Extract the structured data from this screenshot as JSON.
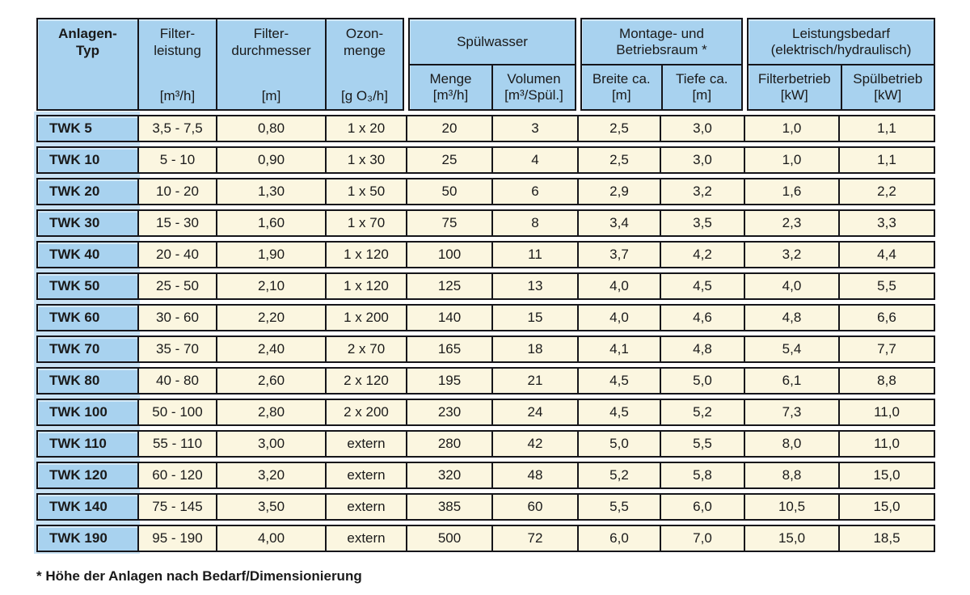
{
  "header": {
    "columns": [
      {
        "title": "Anlagen-\nTyp",
        "unit": ""
      },
      {
        "title": "Filter-\nleistung",
        "unit": "[m³/h]"
      },
      {
        "title": "Filter-\ndurchmesser",
        "unit": "[m]"
      },
      {
        "title": "Ozon-\nmenge",
        "unit": "[g O₃/h]"
      }
    ],
    "groups": [
      {
        "label": "Spülwasser",
        "sub": [
          {
            "name": "Menge",
            "unit": "[m³/h]"
          },
          {
            "name": "Volumen",
            "unit": "[m³/Spül.]"
          }
        ]
      },
      {
        "label": "Montage- und\nBetriebsraum *",
        "sub": [
          {
            "name": "Breite ca.",
            "unit": "[m]"
          },
          {
            "name": "Tiefe ca.",
            "unit": "[m]"
          }
        ]
      },
      {
        "label": "Leistungsbedarf\n(elektrisch/hydraulisch)",
        "sub": [
          {
            "name": "Filterbetrieb",
            "unit": "[kW]"
          },
          {
            "name": "Spülbetrieb",
            "unit": "[kW]"
          }
        ]
      }
    ]
  },
  "body": {
    "rows": [
      {
        "cells": [
          "TWK 5",
          "3,5 - 7,5",
          "0,80",
          "1 x 20",
          "20",
          "3",
          "2,5",
          "3,0",
          "1,0",
          "1,1"
        ]
      },
      {
        "cells": [
          "TWK 10",
          "5 - 10",
          "0,90",
          "1 x 30",
          "25",
          "4",
          "2,5",
          "3,0",
          "1,0",
          "1,1"
        ]
      },
      {
        "cells": [
          "TWK 20",
          "10 - 20",
          "1,30",
          "1 x 50",
          "50",
          "6",
          "2,9",
          "3,2",
          "1,6",
          "2,2"
        ]
      },
      {
        "cells": [
          "TWK 30",
          "15 - 30",
          "1,60",
          "1 x 70",
          "75",
          "8",
          "3,4",
          "3,5",
          "2,3",
          "3,3"
        ]
      },
      {
        "cells": [
          "TWK 40",
          "20 - 40",
          "1,90",
          "1 x 120",
          "100",
          "11",
          "3,7",
          "4,2",
          "3,2",
          "4,4"
        ]
      },
      {
        "cells": [
          "TWK 50",
          "25 - 50",
          "2,10",
          "1 x 120",
          "125",
          "13",
          "4,0",
          "4,5",
          "4,0",
          "5,5"
        ]
      },
      {
        "cells": [
          "TWK 60",
          "30 - 60",
          "2,20",
          "1 x 200",
          "140",
          "15",
          "4,0",
          "4,6",
          "4,8",
          "6,6"
        ]
      },
      {
        "cells": [
          "TWK 70",
          "35 - 70",
          "2,40",
          "2 x 70",
          "165",
          "18",
          "4,1",
          "4,8",
          "5,4",
          "7,7"
        ]
      },
      {
        "cells": [
          "TWK 80",
          "40 - 80",
          "2,60",
          "2 x 120",
          "195",
          "21",
          "4,5",
          "5,0",
          "6,1",
          "8,8"
        ]
      },
      {
        "cells": [
          "TWK 100",
          "50 - 100",
          "2,80",
          "2 x 200",
          "230",
          "24",
          "4,5",
          "5,2",
          "7,3",
          "11,0"
        ]
      },
      {
        "cells": [
          "TWK 110",
          "55 - 110",
          "3,00",
          "extern",
          "280",
          "42",
          "5,0",
          "5,5",
          "8,0",
          "11,0"
        ]
      },
      {
        "cells": [
          "TWK 120",
          "60 - 120",
          "3,20",
          "extern",
          "320",
          "48",
          "5,2",
          "5,8",
          "8,8",
          "15,0"
        ]
      },
      {
        "cells": [
          "TWK 140",
          "75 - 145",
          "3,50",
          "extern",
          "385",
          "60",
          "5,5",
          "6,0",
          "10,5",
          "15,0"
        ]
      },
      {
        "cells": [
          "TWK 190",
          "95 - 190",
          "4,00",
          "extern",
          "500",
          "72",
          "6,0",
          "7,0",
          "15,0",
          "18,5"
        ]
      }
    ]
  },
  "footnote": "* Höhe der Anlagen nach Bedarf/Dimensionierung",
  "colors": {
    "header_blue": "#a8d2ef",
    "cell_cream": "#fbf6e0",
    "border": "#15151a",
    "backing_blue": "#c9e2f4",
    "page_bg": "#ffffff",
    "text": "#1a1a1a"
  }
}
